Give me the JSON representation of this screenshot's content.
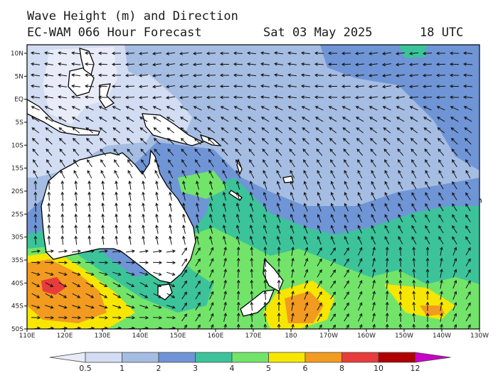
{
  "title": {
    "line1": "Wave Height (m) and Direction",
    "model": "EC-WAM 066 Hour Forecast",
    "date": "Sat 03 May 2025",
    "time": "18 UTC"
  },
  "watermark": "© www.PassageWeather.com",
  "map": {
    "lat_labels": [
      "10N",
      "5N",
      "EQ",
      "5S",
      "10S",
      "15S",
      "20S",
      "25S",
      "30S",
      "35S",
      "40S",
      "45S",
      "50S"
    ],
    "lon_labels": [
      "110E",
      "120E",
      "130E",
      "140E",
      "150E",
      "160E",
      "170E",
      "180",
      "170W",
      "160W",
      "150W",
      "140W",
      "130W"
    ]
  },
  "legend": {
    "labels": [
      "0.5",
      "1",
      "2",
      "3",
      "4",
      "5",
      "6",
      "8",
      "10",
      "12"
    ],
    "colors": [
      "#e8ecf8",
      "#d2dcf2",
      "#a5bde3",
      "#6f95d6",
      "#3cc39a",
      "#72e46a",
      "#f7e600",
      "#f29b20",
      "#e83c3c",
      "#b00000",
      "#c800c8"
    ]
  },
  "colors": {
    "land": "#ffffff",
    "coast": "#000000",
    "arrow": "#111111"
  }
}
